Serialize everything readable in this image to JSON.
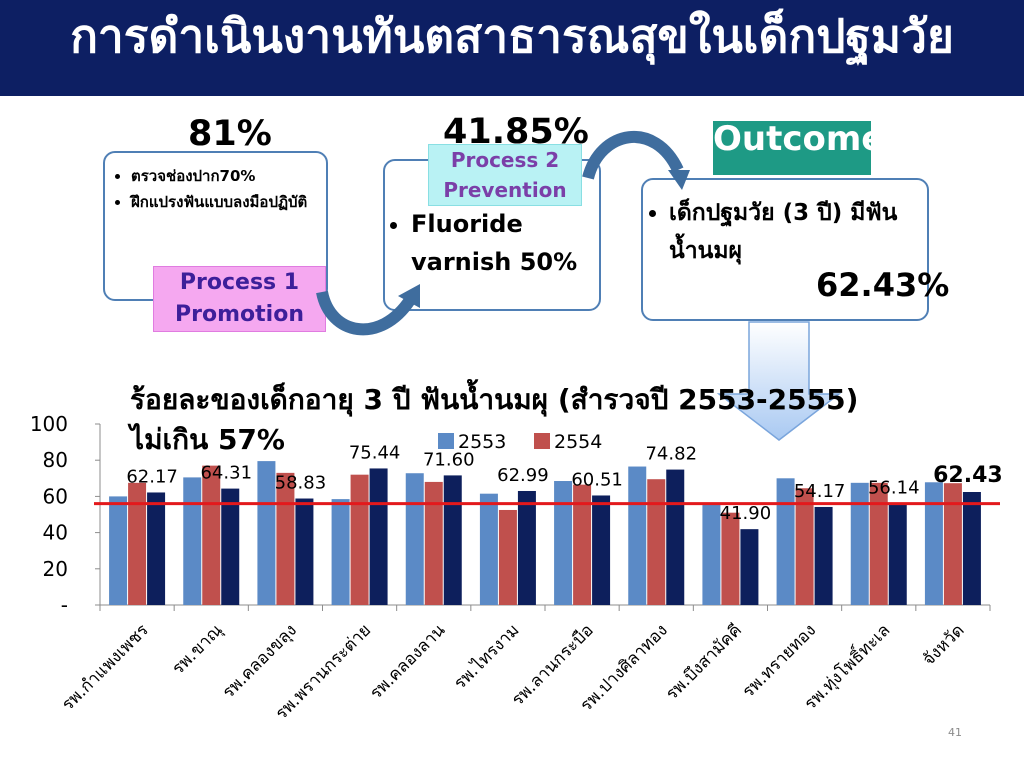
{
  "title": "การดำเนินงานทันตสาธารณสุขในเด็กปฐมวัย",
  "process1": {
    "percent": "81%",
    "items": [
      "ตรวจช่องปาก70%",
      "ฝึกแปรงฟันแบบลงมือปฏิบัติ"
    ],
    "label_line1": "Process 1",
    "label_line2": "Promotion"
  },
  "process2": {
    "percent": "41.85%",
    "item": "Fluoride varnish 50%",
    "label_line1": "Process 2",
    "label_line2": "Prevention"
  },
  "outcome": {
    "label": "Outcome",
    "item": "เด็กปฐมวัย (3 ปี) มีฟันน้ำนมผุ",
    "percent": "62.43%"
  },
  "note": "ร้อยละของเด็กอายุ 3 ปี ฟันน้ำนมผุ (สำรวจปี 2553-2555) ไม่เกิน 57%",
  "slide_number": "41",
  "chart_data": {
    "type": "bar",
    "categories": [
      "รพ.กำแพงเพชร",
      "รพ.ขาณุ",
      "รพ.คลองขลุง",
      "รพ.พรานกระต่าย",
      "รพ.คลองลาน",
      "รพ.ไทรงาม",
      "รพ.ลานกระบือ",
      "รพ.ปางศิลาทอง",
      "รพ.บึงสามัคคี",
      "รพ.ทรายทอง",
      "รพ.ทุ่งโพธิ์ทะเล",
      "จังหวัด"
    ],
    "series": [
      {
        "name": "2553",
        "color": "#5b8ac6",
        "values": [
          60,
          70.5,
          79.5,
          58.5,
          72.8,
          61.5,
          68.5,
          76.5,
          55.5,
          70,
          67.5,
          67.8
        ]
      },
      {
        "name": "2554",
        "color": "#c0504d",
        "values": [
          67.5,
          77,
          73,
          72,
          68,
          52.5,
          66.5,
          69.5,
          51,
          64.5,
          67.5,
          67.3
        ]
      },
      {
        "name": "",
        "color": "#0d1f5c",
        "values": [
          62.17,
          64.31,
          58.83,
          75.44,
          71.6,
          62.99,
          60.51,
          74.82,
          41.9,
          54.17,
          56.14,
          62.43
        ]
      }
    ],
    "data_labels": [
      "62.17",
      "64.31",
      "58.83",
      "75.44",
      "71.60",
      "62.99",
      "60.51",
      "74.82",
      "41.90",
      "54.17",
      "56.14",
      "62.43"
    ],
    "y_ticks": [
      "-",
      "20",
      "40",
      "60",
      "80",
      "100"
    ],
    "ylim": [
      0,
      100
    ],
    "reference_line": {
      "value": 56,
      "color": "#e3191c"
    },
    "legend_position": "top-center",
    "grid": false
  }
}
